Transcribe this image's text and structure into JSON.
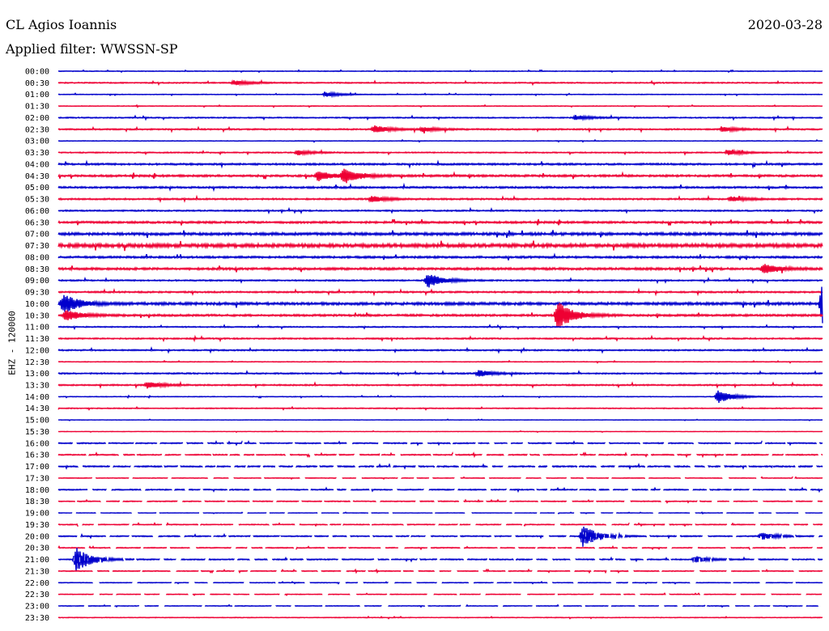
{
  "header": {
    "station": "CL Agios Ioannis",
    "date": "2020-03-28",
    "filter": "Applied filter: WWSSN-SP"
  },
  "chart_data": {
    "type": "line",
    "subtype": "helicorder",
    "ylabel": "EHZ - 120000",
    "trace_colors": [
      "#0000cc",
      "#ee0033"
    ],
    "row_labels": [
      "00:00",
      "00:30",
      "01:00",
      "01:30",
      "02:00",
      "02:30",
      "03:00",
      "03:30",
      "04:00",
      "04:30",
      "05:00",
      "05:30",
      "06:00",
      "06:30",
      "07:00",
      "07:30",
      "08:00",
      "08:30",
      "09:00",
      "09:30",
      "10:00",
      "10:30",
      "11:00",
      "11:30",
      "12:00",
      "12:30",
      "13:00",
      "13:30",
      "14:00",
      "14:30",
      "15:00",
      "15:30",
      "16:00",
      "16:30",
      "17:00",
      "17:30",
      "18:00",
      "18:30",
      "19:00",
      "19:30",
      "20:00",
      "20:30",
      "21:00",
      "21:30",
      "22:00",
      "22:30",
      "23:00",
      "23:30"
    ],
    "noise_level": [
      0.3,
      0.5,
      0.3,
      0.3,
      0.5,
      0.6,
      0.3,
      0.5,
      0.8,
      0.9,
      0.8,
      0.7,
      0.6,
      0.9,
      1.2,
      1.6,
      0.9,
      1.0,
      0.6,
      0.7,
      1.2,
      0.9,
      0.5,
      0.6,
      0.6,
      0.3,
      0.6,
      0.6,
      0.3,
      0.4,
      0.2,
      0.2,
      0.5,
      0.5,
      0.6,
      0.3,
      0.5,
      0.4,
      0.2,
      0.4,
      0.5,
      0.4,
      0.5,
      0.4,
      0.3,
      0.3,
      0.3,
      0.3
    ],
    "events": [
      {
        "row": "00:30",
        "minute": 6.9,
        "amplitude": 3
      },
      {
        "row": "01:00",
        "minute": 10.5,
        "amplitude": 3
      },
      {
        "row": "02:00",
        "minute": 20.3,
        "amplitude": 3
      },
      {
        "row": "02:30",
        "minute": 12.4,
        "amplitude": 5
      },
      {
        "row": "02:30",
        "minute": 14.3,
        "amplitude": 3
      },
      {
        "row": "02:30",
        "minute": 26.1,
        "amplitude": 3
      },
      {
        "row": "03:30",
        "minute": 9.4,
        "amplitude": 3
      },
      {
        "row": "03:30",
        "minute": 26.3,
        "amplitude": 3
      },
      {
        "row": "04:30",
        "minute": 10.2,
        "amplitude": 6
      },
      {
        "row": "04:30",
        "minute": 11.2,
        "amplitude": 9
      },
      {
        "row": "05:30",
        "minute": 12.3,
        "amplitude": 4
      },
      {
        "row": "05:30",
        "minute": 26.4,
        "amplitude": 3
      },
      {
        "row": "08:30",
        "minute": 27.7,
        "amplitude": 6
      },
      {
        "row": "09:00",
        "minute": 14.5,
        "amplitude": 9
      },
      {
        "row": "10:00",
        "minute": 0.2,
        "amplitude": 12
      },
      {
        "row": "10:00",
        "minute": 30.0,
        "amplitude": 30
      },
      {
        "row": "10:30",
        "minute": 0.3,
        "amplitude": 7
      },
      {
        "row": "10:30",
        "minute": 19.6,
        "amplitude": 18
      },
      {
        "row": "13:00",
        "minute": 16.5,
        "amplitude": 4
      },
      {
        "row": "13:30",
        "minute": 3.5,
        "amplitude": 4
      },
      {
        "row": "14:00",
        "minute": 25.9,
        "amplitude": 8
      },
      {
        "row": "20:00",
        "minute": 20.6,
        "amplitude": 14
      },
      {
        "row": "20:00",
        "minute": 27.6,
        "amplitude": 5
      },
      {
        "row": "21:00",
        "minute": 0.7,
        "amplitude": 16
      },
      {
        "row": "21:00",
        "minute": 25.0,
        "amplitude": 4
      }
    ],
    "gaps": [
      {
        "row": "16:00",
        "pattern": "dashed"
      },
      {
        "row": "16:30",
        "pattern": "dashed"
      },
      {
        "row": "17:00",
        "pattern": "dashed"
      },
      {
        "row": "17:30",
        "pattern": "dashed"
      },
      {
        "row": "18:00",
        "pattern": "dashed"
      },
      {
        "row": "18:30",
        "pattern": "dashed"
      },
      {
        "row": "19:00",
        "pattern": "dashed"
      },
      {
        "row": "19:30",
        "pattern": "dashed"
      },
      {
        "row": "20:00",
        "pattern": "dashed"
      },
      {
        "row": "20:30",
        "pattern": "dashed"
      },
      {
        "row": "21:00",
        "pattern": "dashed"
      },
      {
        "row": "21:30",
        "pattern": "dashed"
      },
      {
        "row": "22:00",
        "pattern": "dashed"
      },
      {
        "row": "22:30",
        "pattern": "dashed"
      },
      {
        "row": "23:00",
        "pattern": "dashed"
      }
    ],
    "grid": false,
    "legend": "none"
  }
}
